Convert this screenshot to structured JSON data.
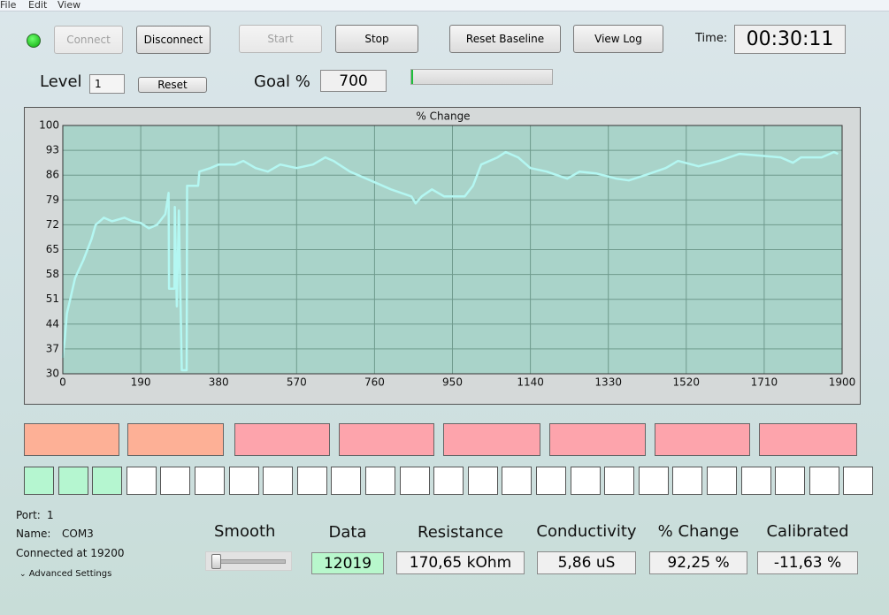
{
  "menu": [
    "File",
    "Edit",
    "View"
  ],
  "buttons": {
    "connect": "Connect",
    "disconnect": "Disconnect",
    "start": "Start",
    "stop": "Stop",
    "reset_baseline": "Reset Baseline",
    "view_log": "View Log"
  },
  "time": {
    "label": "Time:",
    "value": "00:30:11"
  },
  "level": {
    "label": "Level",
    "value": "1",
    "reset": "Reset"
  },
  "goal": {
    "label": "Goal %",
    "value": "700"
  },
  "chart_data": {
    "type": "line",
    "title": "% Change",
    "color": "#b4f7f2",
    "grid": true,
    "xlim": [
      0,
      1900
    ],
    "ylim": [
      30,
      100
    ],
    "xticks": [
      0,
      190,
      380,
      570,
      760,
      950,
      1140,
      1330,
      1520,
      1710,
      1900
    ],
    "yticks": [
      30,
      37,
      44,
      51,
      58,
      65,
      72,
      79,
      86,
      93,
      100
    ],
    "x": [
      0,
      5,
      10,
      20,
      30,
      50,
      70,
      80,
      100,
      120,
      150,
      170,
      190,
      210,
      230,
      250,
      258,
      259,
      272,
      273,
      278,
      283,
      290,
      302,
      303,
      330,
      333,
      360,
      380,
      420,
      440,
      470,
      500,
      530,
      570,
      610,
      640,
      660,
      700,
      760,
      800,
      850,
      860,
      875,
      900,
      930,
      980,
      1000,
      1020,
      1060,
      1080,
      1110,
      1140,
      1180,
      1230,
      1260,
      1300,
      1350,
      1380,
      1420,
      1470,
      1500,
      1550,
      1600,
      1650,
      1700,
      1750,
      1780,
      1800,
      1850,
      1870,
      1880,
      1890
    ],
    "values": [
      34.5,
      40,
      47,
      52,
      57,
      62,
      68,
      72,
      74,
      73,
      74,
      73,
      72.5,
      71,
      72,
      75,
      81,
      54,
      54,
      77,
      49,
      76,
      31,
      31,
      83,
      83,
      87,
      88,
      89,
      89,
      90,
      88,
      87,
      89,
      88,
      89,
      91,
      90,
      87,
      84,
      82,
      80,
      78,
      80,
      82,
      80,
      80,
      83,
      89,
      91,
      92.5,
      91,
      88,
      87,
      85,
      87,
      86.5,
      85,
      84.5,
      86,
      88,
      90,
      88.5,
      90,
      92,
      91.5,
      91,
      89.5,
      91,
      91,
      92,
      92.5,
      92
    ]
  },
  "status": {
    "port_label": "Port:",
    "port": "1",
    "name_label": "Name:",
    "name": "COM3",
    "connected": "Connected at 19200",
    "advanced": "Advanced Settings"
  },
  "readouts": {
    "smooth": "Smooth",
    "data": {
      "label": "Data",
      "value": "12019"
    },
    "resistance": {
      "label": "Resistance",
      "value": "170,65 kOhm"
    },
    "conductivity": {
      "label": "Conductivity",
      "value": "5,86 uS"
    },
    "change": {
      "label": "% Change",
      "value": "92,25 %"
    },
    "calibrated": {
      "label": "Calibrated",
      "value": "-11,63 %"
    }
  }
}
